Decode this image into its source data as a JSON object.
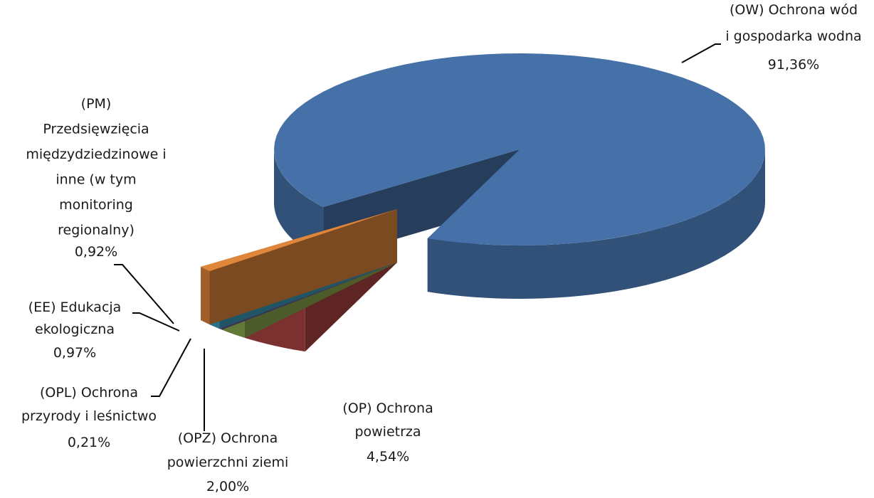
{
  "chart_data": {
    "type": "pie3d",
    "categories": [
      "(OW)  Ochrona wód\ni gospodarka wodna",
      "(OP)   Ochrona\npowietrza",
      "(OPZ) Ochrona\npowierzchni ziemi",
      "(OPL) Ochrona\nprzyrody i leśnictwo",
      "(EE)    Edukacja\nekologiczna",
      "(PM)\nPrzedsięwzięcia\nmiędzydziedzinowe i\ninne  (w tym\nmonitoring\nregionalny)"
    ],
    "values": [
      91.36,
      4.54,
      2.0,
      0.21,
      0.97,
      0.92
    ],
    "value_labels": [
      "91,36%",
      "4,54%",
      "2,00%",
      "0,21%",
      "0,97%",
      "0,92%"
    ],
    "colors": [
      "#4571a8",
      "#aa4441",
      "#88a84c",
      "#6e5994",
      "#3c9bb7",
      "#e0863a"
    ]
  }
}
